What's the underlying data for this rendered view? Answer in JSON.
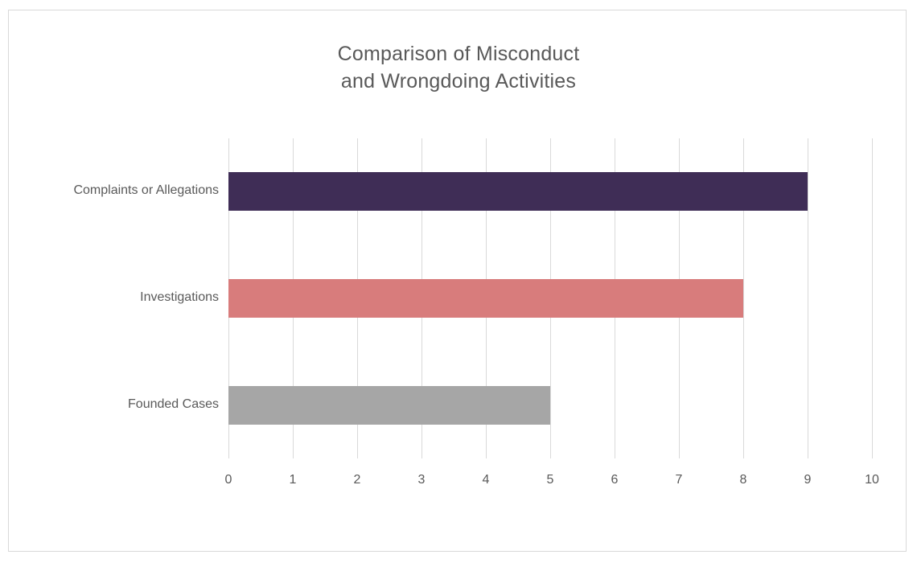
{
  "chart_data": {
    "type": "bar",
    "orientation": "horizontal",
    "title": "Comparison of Misconduct and Wrongdoing Activities",
    "title_lines": [
      "Comparison of Misconduct",
      "and Wrongdoing Activities"
    ],
    "categories": [
      "Complaints or Allegations",
      "Investigations",
      "Founded Cases"
    ],
    "values": [
      9,
      8,
      5
    ],
    "bar_colors": [
      "#3f2d56",
      "#d87c7c",
      "#a6a6a6"
    ],
    "xlim": [
      0,
      10
    ],
    "x_ticks": [
      0,
      1,
      2,
      3,
      4,
      5,
      6,
      7,
      8,
      9,
      10
    ],
    "xlabel": "",
    "ylabel": "",
    "grid": true,
    "legend": false
  },
  "colors": {
    "text": "#595959",
    "gridline": "#d9d9d9",
    "frame_border": "#d9d9d9",
    "background": "#ffffff"
  }
}
